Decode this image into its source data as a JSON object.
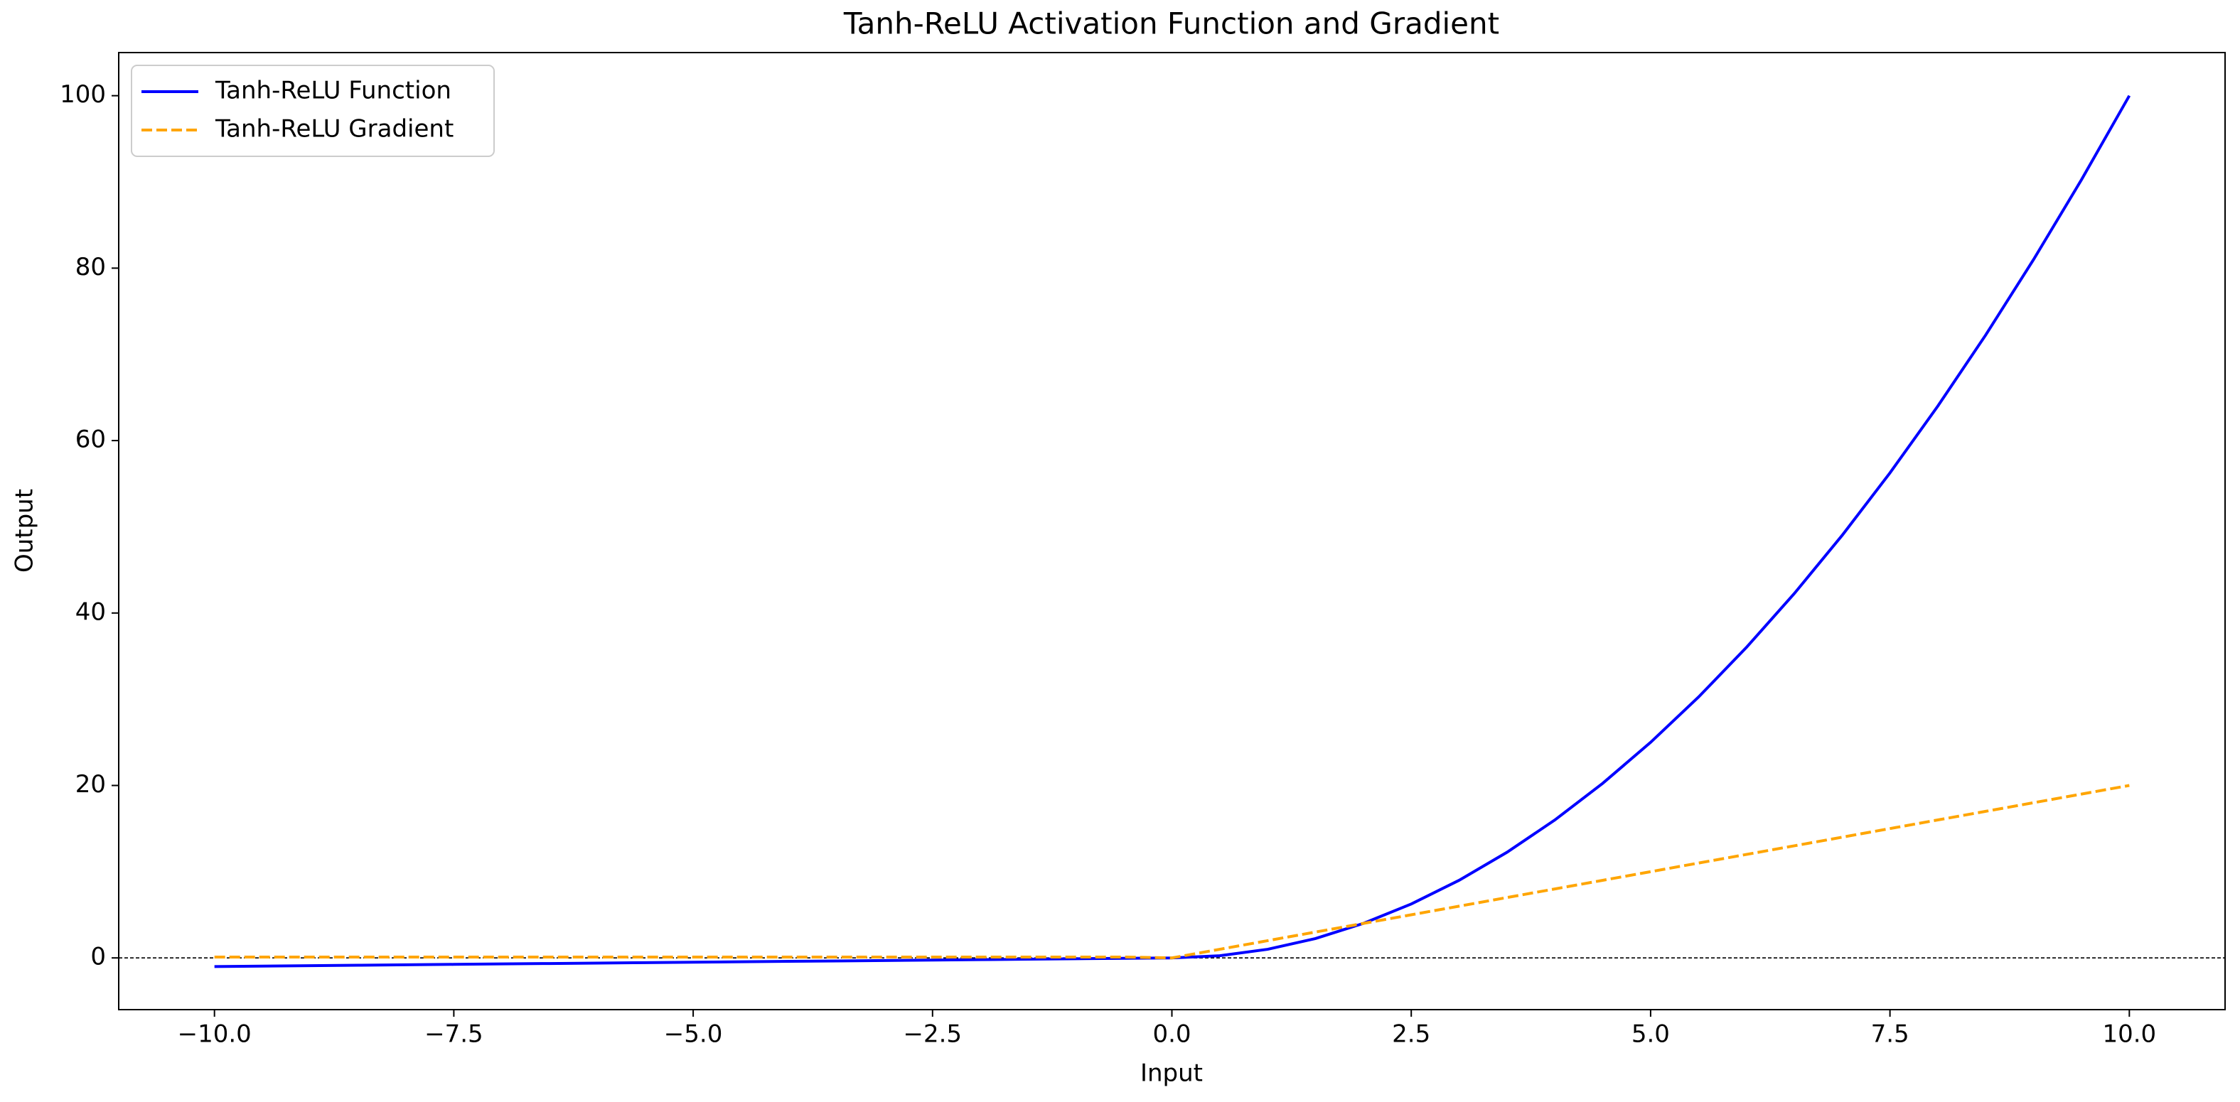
{
  "chart_data": {
    "type": "line",
    "title": "Tanh-ReLU Activation Function and Gradient",
    "xlabel": "Input",
    "ylabel": "Output",
    "x": [
      -10,
      -9.5,
      -9,
      -8.5,
      -8,
      -7.5,
      -7,
      -6.5,
      -6,
      -5.5,
      -5,
      -4.5,
      -4,
      -3.5,
      -3,
      -2.5,
      -2,
      -1.5,
      -1,
      -0.5,
      0,
      0.5,
      1,
      1.5,
      2,
      2.5,
      3,
      3.5,
      4,
      4.5,
      5,
      5.5,
      6,
      6.5,
      7,
      7.5,
      8,
      8.5,
      9,
      9.5,
      10
    ],
    "series": [
      {
        "name": "Tanh-ReLU Function",
        "color": "#0000ff",
        "dash": false,
        "values": [
          -1,
          -0.95,
          -0.9,
          -0.85,
          -0.8,
          -0.75,
          -0.7,
          -0.65,
          -0.6,
          -0.55,
          -0.5,
          -0.45,
          -0.4,
          -0.35,
          -0.3,
          -0.25,
          -0.2,
          -0.15,
          -0.1,
          -0.05,
          0,
          0.25,
          1,
          2.25,
          4,
          6.25,
          9,
          12.25,
          16,
          20.25,
          25,
          30.25,
          36,
          42.25,
          49,
          56.25,
          64,
          72.25,
          81,
          90.25,
          100
        ]
      },
      {
        "name": "Tanh-ReLU Gradient",
        "color": "#ffa500",
        "dash": true,
        "values": [
          0.1,
          0.1,
          0.1,
          0.1,
          0.1,
          0.1,
          0.1,
          0.1,
          0.1,
          0.1,
          0.1,
          0.1,
          0.1,
          0.1,
          0.1,
          0.1,
          0.1,
          0.1,
          0.1,
          0.1,
          0,
          1,
          2,
          3,
          4,
          5,
          6,
          7,
          8,
          9,
          10,
          11,
          12,
          13,
          14,
          15,
          16,
          17,
          18,
          19,
          20
        ]
      }
    ],
    "hline": {
      "y": 0,
      "color": "#000000"
    },
    "xlim": [
      -11,
      11
    ],
    "ylim": [
      -6,
      105
    ],
    "xticks": [
      {
        "value": -10,
        "label": "−10.0"
      },
      {
        "value": -7.5,
        "label": "−7.5"
      },
      {
        "value": -5,
        "label": "−5.0"
      },
      {
        "value": -2.5,
        "label": "−2.5"
      },
      {
        "value": 0,
        "label": "0.0"
      },
      {
        "value": 2.5,
        "label": "2.5"
      },
      {
        "value": 5,
        "label": "5.0"
      },
      {
        "value": 7.5,
        "label": "7.5"
      },
      {
        "value": 10,
        "label": "10.0"
      }
    ],
    "yticks": [
      0,
      20,
      40,
      60,
      80,
      100
    ],
    "legend": "upper left",
    "grid": false
  }
}
